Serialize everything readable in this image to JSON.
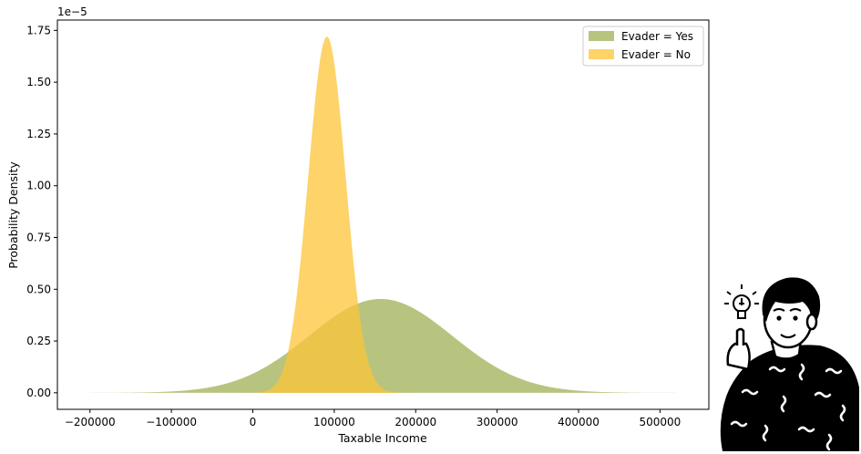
{
  "chart_data": {
    "type": "area",
    "xlabel": "Taxable Income",
    "ylabel": "Probability Density",
    "offset_text": "1e−5",
    "xlim": [
      -240000,
      560000
    ],
    "ylim": [
      -0.08,
      1.8
    ],
    "xticks": [
      -200000,
      -100000,
      0,
      100000,
      200000,
      300000,
      400000,
      500000
    ],
    "xtick_labels": [
      "−200000",
      "−100000",
      "0",
      "100000",
      "200000",
      "300000",
      "400000",
      "500000"
    ],
    "yticks": [
      0.0,
      0.25,
      0.5,
      0.75,
      1.0,
      1.25,
      1.5,
      1.75
    ],
    "ytick_labels": [
      "0.00",
      "0.25",
      "0.50",
      "0.75",
      "1.00",
      "1.25",
      "1.50",
      "1.75"
    ],
    "x_range": [
      -200000,
      520000
    ],
    "series": [
      {
        "name": "Evader = Yes",
        "color": "#a3b35c",
        "opacity": 0.78,
        "mean": 157000,
        "sd": 88000,
        "peak": 0.453
      },
      {
        "name": "Evader = No",
        "color": "#fcc438",
        "opacity": 0.75,
        "mean": 91000,
        "sd": 23000,
        "peak": 1.72
      }
    ],
    "legend_position": "top-right",
    "grid": false
  },
  "illustration": {
    "icon": "person-idea-lightbulb-icon"
  }
}
